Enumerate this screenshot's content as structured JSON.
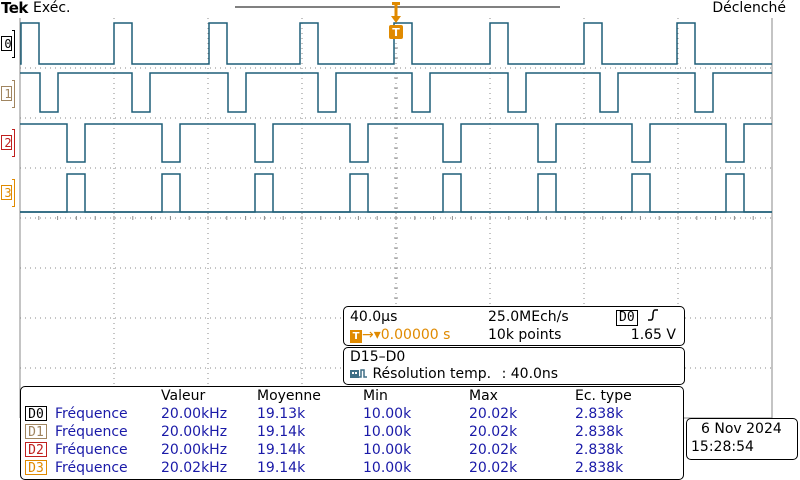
{
  "header": {
    "brand": "Tek",
    "run_state": "Exéc.",
    "trigger_state": "Déclenché"
  },
  "channels": [
    {
      "label": "0",
      "color": "#000000"
    },
    {
      "label": "1",
      "color": "#a08560"
    },
    {
      "label": "2",
      "color": "#c0201e"
    },
    {
      "label": "3",
      "color": "#e08a00"
    }
  ],
  "trigger_marker": {
    "label": "T",
    "color": "#e08a00"
  },
  "trace_color": "#1f5f78",
  "grid_color": "#8a8a8a",
  "timebase": {
    "time_per_div": "40.0µs",
    "sample_rate": "25.0MEch/s",
    "trigger_source": "D0",
    "trigger_slope_icon": "rising-edge-icon",
    "trigger_position": "0.00000 s",
    "record_length": "10k points",
    "trigger_level": "1.65 V"
  },
  "bus": {
    "title": "D15–D0",
    "resolution_label": "Résolution temp.",
    "resolution_value": ": 40.0ns",
    "icon": "digital-channels-icon"
  },
  "measurements": {
    "headers": [
      "Valeur",
      "Moyenne",
      "Min",
      "Max",
      "Ec. type"
    ],
    "rows": [
      {
        "channel": "D0",
        "color": "#000000",
        "name": "Fréquence",
        "value": "20.00kHz",
        "mean": "19.13k",
        "min": "10.00k",
        "max": "20.02k",
        "std": "2.838k"
      },
      {
        "channel": "D1",
        "color": "#a08560",
        "name": "Fréquence",
        "value": "20.00kHz",
        "mean": "19.14k",
        "min": "10.00k",
        "max": "20.02k",
        "std": "2.838k"
      },
      {
        "channel": "D2",
        "color": "#c0201e",
        "name": "Fréquence",
        "value": "20.00kHz",
        "mean": "19.14k",
        "min": "10.00k",
        "max": "20.02k",
        "std": "2.838k"
      },
      {
        "channel": "D3",
        "color": "#e08a00",
        "name": "Fréquence",
        "value": "20.02kHz",
        "mean": "19.14k",
        "min": "10.00k",
        "max": "20.02k",
        "std": "2.838k"
      }
    ]
  },
  "datetime": {
    "date": "6 Nov 2024",
    "time": "15:28:54"
  }
}
